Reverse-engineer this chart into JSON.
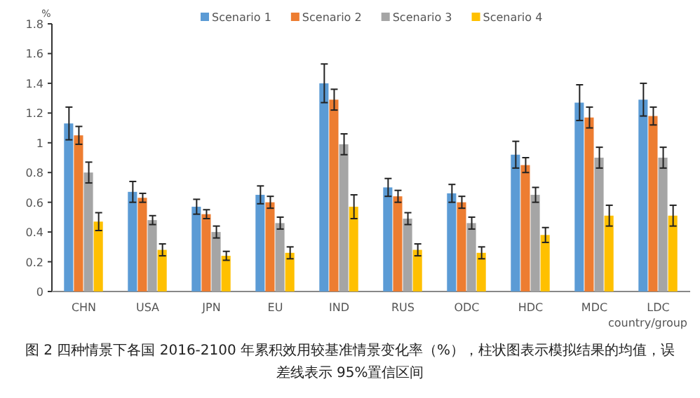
{
  "chart_data": {
    "type": "bar",
    "ylabel": "%",
    "xlabel": "country/group",
    "legend": "top right",
    "categories": [
      "CHN",
      "USA",
      "JPN",
      "EU",
      "IND",
      "RUS",
      "ODC",
      "HDC",
      "MDC",
      "LDC"
    ],
    "ylim": [
      0,
      1.8
    ],
    "yticks": [
      0,
      0.2,
      0.4,
      0.6,
      0.8,
      1,
      1.2,
      1.4,
      1.6,
      1.8
    ],
    "series": [
      {
        "name": "Scenario 1",
        "color": "#5b9bd5",
        "values": [
          1.13,
          0.67,
          0.57,
          0.65,
          1.4,
          0.7,
          0.66,
          0.92,
          1.27,
          1.29
        ],
        "errors": [
          0.11,
          0.07,
          0.05,
          0.06,
          0.13,
          0.06,
          0.06,
          0.09,
          0.12,
          0.11
        ]
      },
      {
        "name": "Scenario 2",
        "color": "#ed7d31",
        "values": [
          1.05,
          0.63,
          0.52,
          0.6,
          1.29,
          0.64,
          0.6,
          0.85,
          1.17,
          1.18
        ],
        "errors": [
          0.06,
          0.03,
          0.03,
          0.04,
          0.07,
          0.04,
          0.04,
          0.05,
          0.07,
          0.06
        ]
      },
      {
        "name": "Scenario 3",
        "color": "#a5a5a5",
        "values": [
          0.8,
          0.48,
          0.4,
          0.46,
          0.99,
          0.49,
          0.46,
          0.65,
          0.9,
          0.9
        ],
        "errors": [
          0.07,
          0.03,
          0.04,
          0.04,
          0.07,
          0.04,
          0.04,
          0.05,
          0.07,
          0.07
        ]
      },
      {
        "name": "Scenario 4",
        "color": "#ffc000",
        "values": [
          0.47,
          0.28,
          0.24,
          0.26,
          0.57,
          0.28,
          0.26,
          0.38,
          0.51,
          0.51
        ],
        "errors": [
          0.06,
          0.04,
          0.03,
          0.04,
          0.08,
          0.04,
          0.04,
          0.05,
          0.07,
          0.07
        ]
      }
    ],
    "annotations": [
      "图 2 四种情景下各国 2016-2100 年累积效用较基准情景变化率（%），柱状图表示模拟结果的均值，误差线表示 95%置信区间"
    ]
  }
}
